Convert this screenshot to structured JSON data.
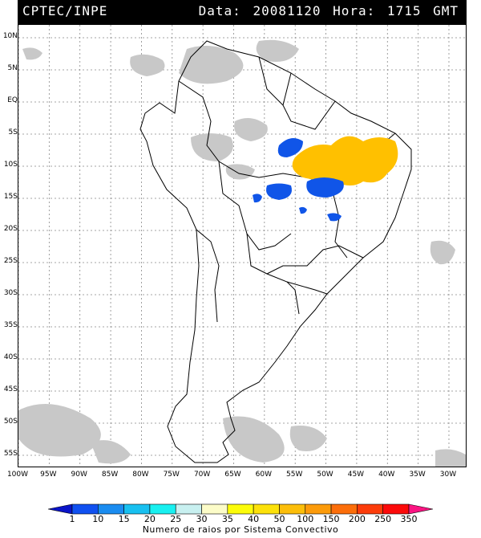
{
  "header": {
    "org": "CPTEC/INPE",
    "datetime": "Data: 20081120 Hora: 1715 GMT"
  },
  "map": {
    "lon_range": [
      -100,
      -27
    ],
    "lat_range": [
      -57,
      12
    ],
    "lat_labels": [
      "10N",
      "5N",
      "EQ",
      "5S",
      "10S",
      "15S",
      "20S",
      "25S",
      "30S",
      "35S",
      "40S",
      "45S",
      "50S",
      "55S"
    ],
    "lat_values": [
      10,
      5,
      0,
      -5,
      -10,
      -15,
      -20,
      -25,
      -30,
      -35,
      -40,
      -45,
      -50,
      -55
    ],
    "lon_labels": [
      "100W",
      "95W",
      "90W",
      "85W",
      "80W",
      "75W",
      "70W",
      "65W",
      "60W",
      "55W",
      "50W",
      "45W",
      "40W",
      "35W",
      "30W"
    ],
    "lon_values": [
      -100,
      -95,
      -90,
      -85,
      -80,
      -75,
      -70,
      -65,
      -60,
      -55,
      -50,
      -45,
      -40,
      -35,
      -30
    ],
    "colors": {
      "land_border": "#000000",
      "grid": "#888888",
      "cloud": "#c8c8c8",
      "blue": "#1055e8",
      "orange": "#ffc000"
    }
  },
  "colorbar": {
    "labels": [
      "1",
      "10",
      "15",
      "20",
      "25",
      "30",
      "35",
      "40",
      "50",
      "100",
      "150",
      "200",
      "250",
      "350"
    ],
    "colors": [
      "#0a14c8",
      "#1050f0",
      "#1a8cf0",
      "#18c0f0",
      "#19f0f0",
      "#c8f0f0",
      "#fcfcc8",
      "#fcfc0a",
      "#fce10a",
      "#fcbe0a",
      "#fc9b0a",
      "#fc6e0a",
      "#fc3c0a",
      "#fc0a0a",
      "#fa1482"
    ],
    "title": "Numero de raios por Sistema Convectivo"
  }
}
